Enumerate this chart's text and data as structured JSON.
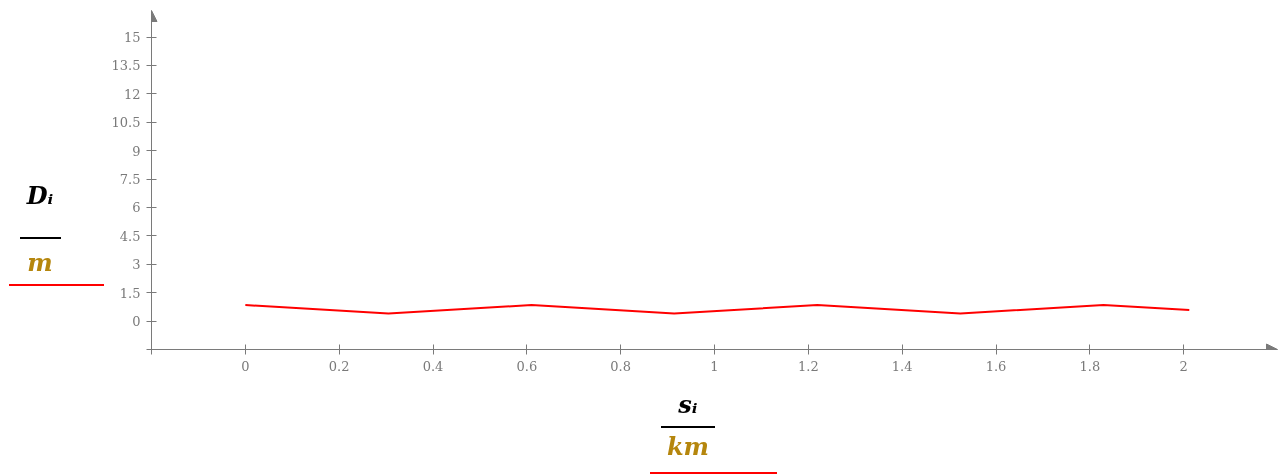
{
  "chart_data": {
    "type": "line",
    "xlabel": "sᵢ\nkm",
    "ylabel": "Dᵢ\nm",
    "x": [
      0,
      0.305,
      0.61,
      0.914,
      1.219,
      1.524,
      1.829,
      2.012
    ],
    "series": [
      {
        "color": "#ff0000",
        "values": [
          0.85,
          0.4,
          0.85,
          0.4,
          0.85,
          0.4,
          0.85,
          0.58
        ]
      }
    ],
    "xlim": [
      -0.2,
      2.2
    ],
    "ylim": [
      -1.5,
      16.4
    ],
    "xticks": [
      {
        "value": -0.2,
        "label": null
      },
      0,
      0.2,
      0.4,
      0.6,
      0.8,
      1,
      1.2,
      1.4,
      1.6,
      1.8,
      2
    ],
    "yticks": [
      {
        "value": -1.5,
        "label": null
      },
      0,
      1.5,
      3,
      4.5,
      6,
      7.5,
      9,
      10.5,
      12,
      13.5,
      15
    ],
    "grid": false,
    "marker": "none",
    "line_style": "solid"
  }
}
